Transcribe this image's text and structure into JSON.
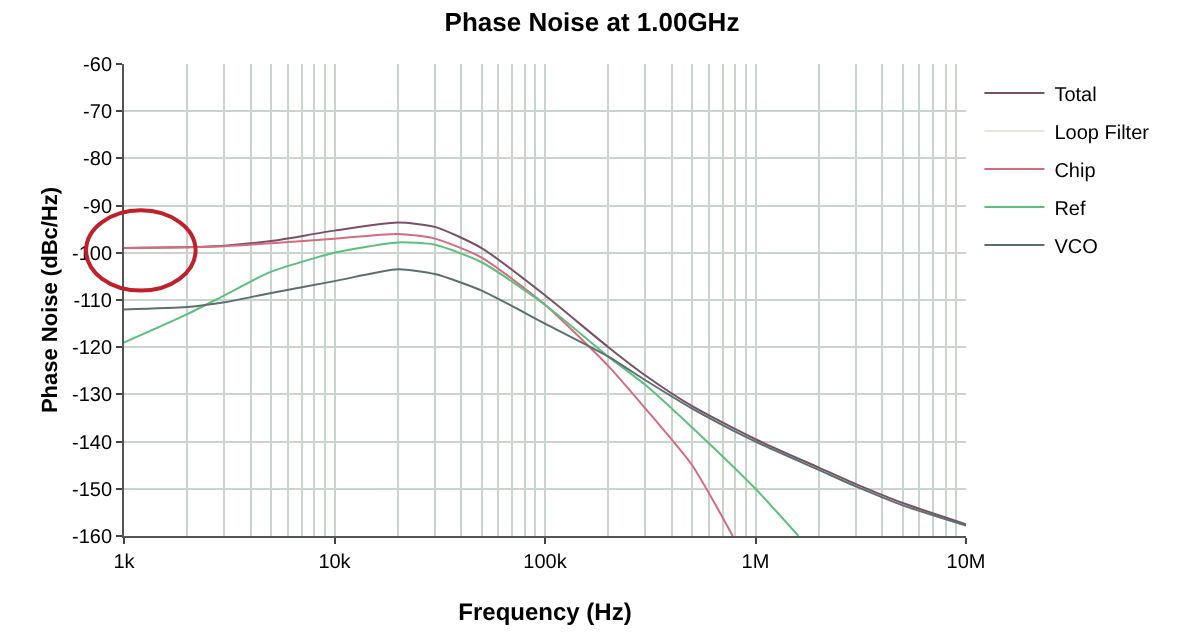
{
  "chart_data": {
    "type": "line",
    "title": "Phase Noise at 1.00GHz",
    "xlabel": "Frequency (Hz)",
    "ylabel": "Phase Noise (dBc/Hz)",
    "log": "x",
    "grid": true,
    "legend": "top right",
    "line_style": "solid",
    "xlim": [
      1000,
      10000000
    ],
    "xticks": [
      {
        "value": 1000,
        "label": "1k"
      },
      {
        "value": 10000,
        "label": "10k"
      },
      {
        "value": 100000,
        "label": "100k"
      },
      {
        "value": 1000000,
        "label": "1M"
      },
      {
        "value": 10000000,
        "label": "10M"
      }
    ],
    "ylim": [
      -160,
      -60
    ],
    "yticks": [
      -160,
      -150,
      -140,
      -130,
      -120,
      -110,
      -100,
      -90,
      -80,
      -70,
      -60
    ],
    "x": [
      1000,
      2000,
      3000,
      5000,
      10000,
      20000,
      30000,
      50000,
      100000,
      200000,
      300000,
      500000,
      1000000,
      2000000,
      3000000,
      5000000,
      10000000
    ],
    "series": [
      {
        "name": "Total",
        "color": "#7a5068",
        "values": [
          -99,
          -98.8,
          -98.5,
          -97.5,
          -95.3,
          -93.6,
          -94.5,
          -99,
          -109,
          -120,
          -126,
          -132.5,
          -139.5,
          -145.5,
          -149,
          -153,
          -157.5
        ]
      },
      {
        "name": "Loop Filter",
        "color": "#e8e8d8",
        "values": [
          null,
          null,
          null,
          null,
          null,
          null,
          null,
          null,
          null,
          null,
          null,
          null,
          null,
          null,
          null,
          null,
          null
        ]
      },
      {
        "name": "Chip",
        "color": "#d86a80",
        "x": [
          1000,
          2000,
          3000,
          5000,
          10000,
          20000,
          30000,
          50000,
          100000,
          200000,
          300000,
          500000,
          780000
        ],
        "values": [
          -99,
          -98.8,
          -98.6,
          -98,
          -97,
          -96,
          -97,
          -101,
          -111,
          -124,
          -133,
          -145,
          -160
        ]
      },
      {
        "name": "Ref",
        "color": "#5cc07a",
        "x": [
          1000,
          2000,
          3000,
          5000,
          10000,
          20000,
          30000,
          50000,
          100000,
          200000,
          300000,
          500000,
          1000000,
          1600000
        ],
        "values": [
          -119,
          -113,
          -109,
          -104,
          -100,
          -97.8,
          -98.3,
          -102,
          -111,
          -122,
          -128,
          -137,
          -150,
          -160
        ]
      },
      {
        "name": "VCO",
        "color": "#5a7070",
        "values": [
          -112,
          -111.5,
          -110.5,
          -108.5,
          -106,
          -103.5,
          -104.5,
          -108,
          -115,
          -122,
          -127,
          -133,
          -140,
          -146,
          -149.5,
          -153.5,
          -157.8
        ]
      }
    ]
  }
}
